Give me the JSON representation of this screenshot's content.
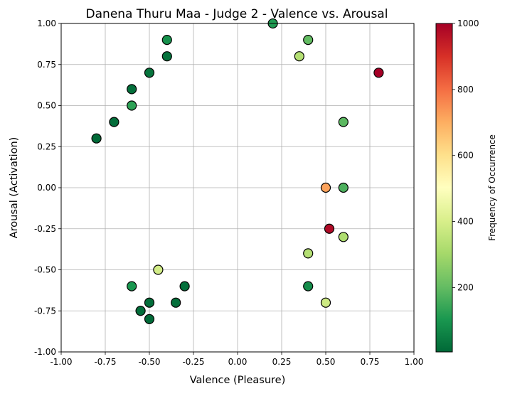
{
  "chart_data": {
    "type": "scatter",
    "title": "Danena Thuru Maa  - Judge 2 - Valence vs. Arousal",
    "xlabel": "Valence (Pleasure)",
    "ylabel": "Arousal (Activation)",
    "xlim": [
      -1.0,
      1.0
    ],
    "ylim": [
      -1.0,
      1.0
    ],
    "xticks": [
      "-1.00",
      "-0.75",
      "-0.50",
      "-0.25",
      "0.00",
      "0.25",
      "0.50",
      "0.75",
      "1.00"
    ],
    "yticks": [
      "-1.00",
      "-0.75",
      "-0.50",
      "-0.25",
      "0.00",
      "0.25",
      "0.50",
      "0.75",
      "1.00"
    ],
    "grid": true,
    "colormap": "RdYlGn_r",
    "colorbar": {
      "label": "Frequency of Occurrence",
      "min": 5,
      "max": 1000,
      "ticks": [
        "200",
        "400",
        "600",
        "800",
        "1000"
      ]
    },
    "points": [
      {
        "x": -0.8,
        "y": 0.3,
        "c": 10
      },
      {
        "x": -0.7,
        "y": 0.4,
        "c": 15
      },
      {
        "x": -0.6,
        "y": 0.6,
        "c": 20
      },
      {
        "x": -0.6,
        "y": 0.5,
        "c": 130
      },
      {
        "x": -0.5,
        "y": 0.7,
        "c": 30
      },
      {
        "x": -0.4,
        "y": 0.9,
        "c": 90
      },
      {
        "x": -0.4,
        "y": 0.8,
        "c": 25
      },
      {
        "x": 0.2,
        "y": 1.0,
        "c": 110
      },
      {
        "x": 0.35,
        "y": 0.8,
        "c": 330
      },
      {
        "x": 0.4,
        "y": 0.9,
        "c": 200
      },
      {
        "x": 0.8,
        "y": 0.7,
        "c": 1000
      },
      {
        "x": 0.6,
        "y": 0.4,
        "c": 190
      },
      {
        "x": 0.5,
        "y": 0.0,
        "c": 720
      },
      {
        "x": 0.6,
        "y": 0.0,
        "c": 170
      },
      {
        "x": 0.52,
        "y": -0.25,
        "c": 980
      },
      {
        "x": 0.6,
        "y": -0.3,
        "c": 320
      },
      {
        "x": 0.4,
        "y": -0.4,
        "c": 330
      },
      {
        "x": 0.4,
        "y": -0.6,
        "c": 80
      },
      {
        "x": 0.5,
        "y": -0.7,
        "c": 380
      },
      {
        "x": -0.45,
        "y": -0.5,
        "c": 390
      },
      {
        "x": -0.6,
        "y": -0.6,
        "c": 100
      },
      {
        "x": -0.3,
        "y": -0.6,
        "c": 20
      },
      {
        "x": -0.35,
        "y": -0.7,
        "c": 20
      },
      {
        "x": -0.5,
        "y": -0.7,
        "c": 15
      },
      {
        "x": -0.55,
        "y": -0.75,
        "c": 15
      },
      {
        "x": -0.5,
        "y": -0.8,
        "c": 10
      }
    ]
  }
}
